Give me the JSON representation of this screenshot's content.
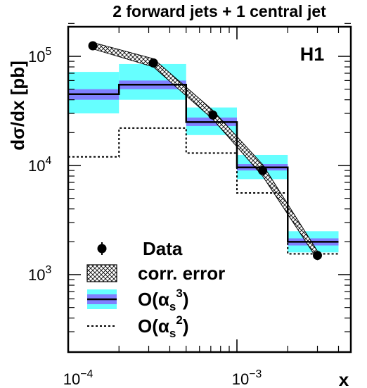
{
  "chart_data": {
    "type": "line",
    "title": "2 forward jets + 1 central jet",
    "xlabel": "x",
    "ylabel": "dσ/dx [pb]",
    "experiment_label": "H1",
    "x_scale": "log",
    "y_scale": "log",
    "xlim": [
      0.0001,
      0.004
    ],
    "ylim": [
      300,
      200000
    ],
    "grid": false,
    "legend_position": "bottom-left",
    "x_ticks": [
      {
        "value": 0.0001,
        "base": "10",
        "exp": "−4"
      },
      {
        "value": 0.001,
        "base": "10",
        "exp": "−3"
      }
    ],
    "y_ticks": [
      {
        "value": 1000,
        "base": "10",
        "exp": "3"
      },
      {
        "value": 10000,
        "base": "10",
        "exp": "4"
      },
      {
        "value": 100000,
        "base": "10",
        "exp": "5"
      }
    ],
    "bin_edges": [
      0.0001,
      0.0002,
      0.0005,
      0.001,
      0.002,
      0.004
    ],
    "series": [
      {
        "name": "Data",
        "kind": "points",
        "x": [
          0.00014,
          0.00032,
          0.00072,
          0.00142,
          0.003
        ],
        "y": [
          125000,
          87000,
          29000,
          9000,
          1500
        ],
        "color": "#000000"
      },
      {
        "name": "corr. error",
        "kind": "band",
        "x": [
          0.00014,
          0.00032,
          0.00072,
          0.00142,
          0.003
        ],
        "y_low": [
          117000,
          80000,
          26500,
          8000,
          1380
        ],
        "y_high": [
          134000,
          95000,
          32000,
          10200,
          1640
        ],
        "color": "#000000"
      },
      {
        "name": "O(α_s^3)",
        "kind": "histogram",
        "values": [
          45000,
          55000,
          25000,
          9600,
          2000
        ],
        "inner_low": [
          40000,
          50000,
          23000,
          9000,
          1850
        ],
        "inner_high": [
          50000,
          60000,
          27500,
          10300,
          2150
        ],
        "outer_low": [
          30000,
          40000,
          19000,
          7500,
          1600
        ],
        "outer_high": [
          72000,
          85000,
          34000,
          12500,
          2500
        ],
        "color": "#000000",
        "inner_color": "#8080ff",
        "outer_color": "#66ffff"
      },
      {
        "name": "O(α_s^2)",
        "kind": "histogram",
        "style": "dotted",
        "values": [
          12000,
          22000,
          13000,
          5600,
          1550
        ],
        "color": "#000000"
      }
    ],
    "legend_items": [
      {
        "text": "Data"
      },
      {
        "text": "corr. error"
      },
      {
        "text": "O(α",
        "sub": "s",
        "sup": "3",
        "close": ")"
      },
      {
        "text": "O(α",
        "sub": "s",
        "sup": "2",
        "close": ")"
      }
    ]
  }
}
